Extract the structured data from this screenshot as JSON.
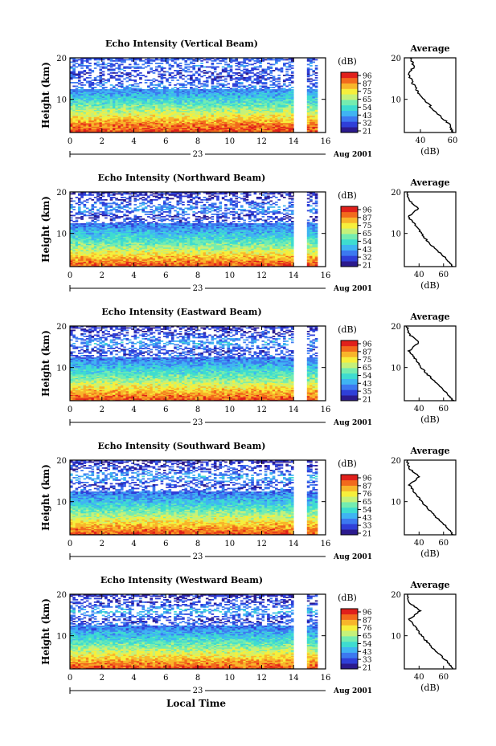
{
  "figure": {
    "x_title": "Local Time",
    "y_label": "Height (km)",
    "date_text": "Aug 2001",
    "day_label": "23",
    "avg_title": "Average",
    "avg_xlabel": "(dB)",
    "cbar_unit": "(dB)",
    "colors": [
      "#2b1a8e",
      "#2f3fd8",
      "#3c79f0",
      "#3fb4f2",
      "#3edcd0",
      "#74ecb0",
      "#c5f17a",
      "#f6ef3c",
      "#f8b52a",
      "#f26a1c",
      "#e0201b"
    ]
  },
  "chart_data": [
    {
      "type": "heatmap",
      "title": "Echo Intensity (Vertical Beam)",
      "xlabel": "Local Time",
      "ylabel": "Height (km)",
      "xlim": [
        0,
        16
      ],
      "ylim": [
        2,
        20
      ],
      "x_ticks": [
        "0",
        "2",
        "4",
        "6",
        "8",
        "10",
        "12",
        "14",
        "16"
      ],
      "y_ticks": [
        "20",
        "10"
      ],
      "data_gap_hours": [
        14.0,
        14.8
      ],
      "colorbar": {
        "unit": "(dB)",
        "ticks": [
          "96",
          "87",
          "75",
          "65",
          "54",
          "43",
          "32",
          "21"
        ]
      },
      "average_profile": {
        "xlabel": "(dB)",
        "x_ticks": [
          "40",
          "60"
        ],
        "xlim": [
          30,
          62
        ],
        "height_km": [
          2,
          4,
          6,
          8,
          10,
          12,
          14,
          16,
          18,
          20
        ],
        "db": [
          60,
          58,
          52,
          47,
          42,
          38,
          35,
          33,
          36,
          34
        ]
      }
    },
    {
      "type": "heatmap",
      "title": "Echo Intensity (Northward Beam)",
      "xlabel": "Local Time",
      "ylabel": "Height (km)",
      "xlim": [
        0,
        16
      ],
      "ylim": [
        2,
        20
      ],
      "x_ticks": [
        "0",
        "2",
        "4",
        "6",
        "8",
        "10",
        "12",
        "14",
        "16"
      ],
      "y_ticks": [
        "20",
        "10"
      ],
      "data_gap_hours": [
        14.0,
        14.8
      ],
      "colorbar": {
        "unit": "(dB)",
        "ticks": [
          "96",
          "87",
          "75",
          "65",
          "54",
          "43",
          "32",
          "21"
        ]
      },
      "average_profile": {
        "xlabel": "(dB)",
        "x_ticks": [
          "40",
          "60"
        ],
        "xlim": [
          28,
          70
        ],
        "height_km": [
          2,
          4,
          6,
          8,
          10,
          12,
          14,
          16,
          18,
          20
        ],
        "db": [
          68,
          62,
          54,
          47,
          42,
          37,
          31,
          39,
          32,
          30
        ]
      }
    },
    {
      "type": "heatmap",
      "title": "Echo Intensity (Eastward Beam)",
      "xlabel": "Local Time",
      "ylabel": "Height (km)",
      "xlim": [
        0,
        16
      ],
      "ylim": [
        2,
        20
      ],
      "x_ticks": [
        "0",
        "2",
        "4",
        "6",
        "8",
        "10",
        "12",
        "14",
        "16"
      ],
      "y_ticks": [
        "20",
        "10"
      ],
      "data_gap_hours": [
        14.0,
        14.8
      ],
      "colorbar": {
        "unit": "(dB)",
        "ticks": [
          "96",
          "87",
          "75",
          "65",
          "54",
          "43",
          "35",
          "21"
        ]
      },
      "average_profile": {
        "xlabel": "(dB)",
        "x_ticks": [
          "40",
          "60"
        ],
        "xlim": [
          28,
          70
        ],
        "height_km": [
          2,
          4,
          6,
          8,
          10,
          12,
          14,
          16,
          18,
          20
        ],
        "db": [
          68,
          62,
          55,
          48,
          42,
          37,
          32,
          40,
          32,
          30
        ]
      }
    },
    {
      "type": "heatmap",
      "title": "Echo Intensity (Southward Beam)",
      "xlabel": "Local Time",
      "ylabel": "Height (km)",
      "xlim": [
        0,
        16
      ],
      "ylim": [
        2,
        20
      ],
      "x_ticks": [
        "0",
        "2",
        "4",
        "6",
        "8",
        "10",
        "12",
        "14",
        "16"
      ],
      "y_ticks": [
        "20",
        "10"
      ],
      "data_gap_hours": [
        14.0,
        14.8
      ],
      "colorbar": {
        "unit": "(dB)",
        "ticks": [
          "96",
          "87",
          "76",
          "65",
          "54",
          "43",
          "33",
          "21"
        ]
      },
      "average_profile": {
        "xlabel": "(dB)",
        "x_ticks": [
          "40",
          "60"
        ],
        "xlim": [
          28,
          70
        ],
        "height_km": [
          2,
          4,
          6,
          8,
          10,
          12,
          14,
          16,
          18,
          20
        ],
        "db": [
          68,
          62,
          55,
          48,
          42,
          37,
          32,
          40,
          32,
          30
        ]
      }
    },
    {
      "type": "heatmap",
      "title": "Echo Intensity (Westward Beam)",
      "xlabel": "Local Time",
      "ylabel": "Height (km)",
      "xlim": [
        0,
        16
      ],
      "ylim": [
        2,
        20
      ],
      "x_ticks": [
        "0",
        "2",
        "4",
        "6",
        "8",
        "10",
        "12",
        "14",
        "16"
      ],
      "y_ticks": [
        "20",
        "10"
      ],
      "data_gap_hours": [
        14.0,
        14.8
      ],
      "colorbar": {
        "unit": "(dB)",
        "ticks": [
          "96",
          "87",
          "76",
          "65",
          "54",
          "43",
          "33",
          "21"
        ]
      },
      "average_profile": {
        "xlabel": "(dB)",
        "x_ticks": [
          "40",
          "60"
        ],
        "xlim": [
          28,
          70
        ],
        "height_km": [
          2,
          4,
          6,
          8,
          10,
          12,
          14,
          16,
          18,
          20
        ],
        "db": [
          68,
          62,
          55,
          48,
          42,
          37,
          32,
          41,
          32,
          30
        ]
      }
    }
  ]
}
